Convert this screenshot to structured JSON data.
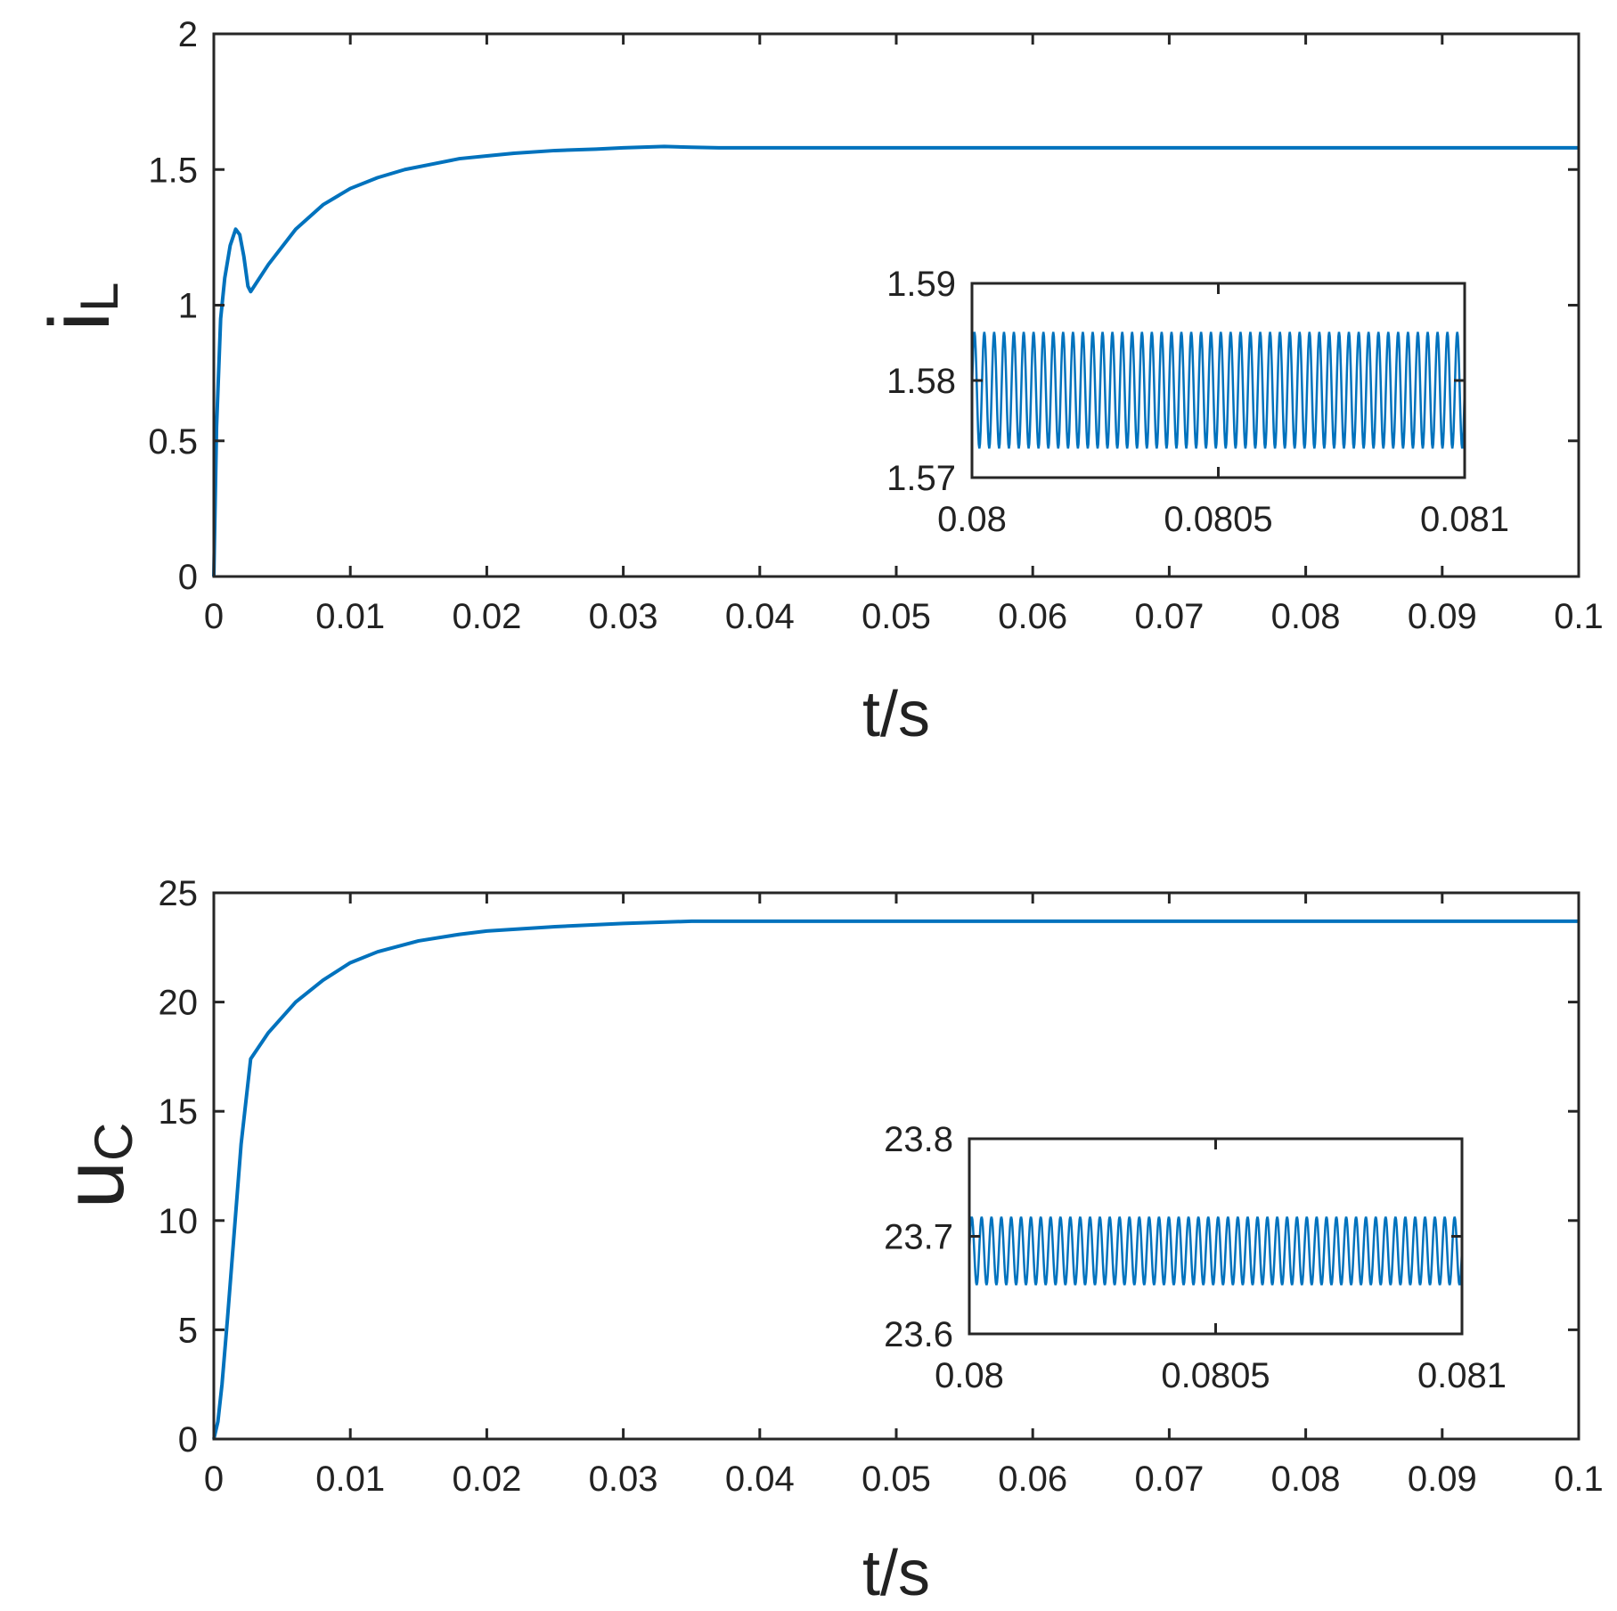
{
  "chart_data": [
    {
      "type": "line",
      "xlabel": "t/s",
      "ylabel": {
        "main": "i",
        "sub": "L"
      },
      "xlim": [
        0,
        0.1
      ],
      "ylim": [
        0,
        2
      ],
      "xticks": [
        0,
        0.01,
        0.02,
        0.03,
        0.04,
        0.05,
        0.06,
        0.07,
        0.08,
        0.09,
        0.1
      ],
      "xtick_labels": [
        "0",
        "0.01",
        "0.02",
        "0.03",
        "0.04",
        "0.05",
        "0.06",
        "0.07",
        "0.08",
        "0.09",
        "0.1"
      ],
      "yticks": [
        0,
        0.5,
        1,
        1.5,
        2
      ],
      "ytick_labels": [
        "0",
        "0.5",
        "1",
        "1.5",
        "2"
      ],
      "grid": false,
      "color": "#0072BD",
      "series": [
        {
          "x": [
            0,
            0.0002,
            0.0005,
            0.0008,
            0.0012,
            0.0016,
            0.0019,
            0.0022,
            0.0025,
            0.0027,
            0.004,
            0.006,
            0.008,
            0.01,
            0.012,
            0.014,
            0.016,
            0.018,
            0.02,
            0.022,
            0.025,
            0.028,
            0.03,
            0.033,
            0.035,
            0.037,
            0.04,
            0.05,
            0.06,
            0.07,
            0.08,
            0.09,
            0.1
          ],
          "y": [
            0,
            0.55,
            0.95,
            1.1,
            1.22,
            1.28,
            1.26,
            1.18,
            1.07,
            1.05,
            1.15,
            1.28,
            1.37,
            1.43,
            1.47,
            1.5,
            1.52,
            1.54,
            1.55,
            1.56,
            1.57,
            1.575,
            1.58,
            1.585,
            1.582,
            1.58,
            1.58,
            1.58,
            1.58,
            1.58,
            1.58,
            1.58,
            1.58
          ]
        }
      ],
      "inset": {
        "type": "line",
        "xlim": [
          0.08,
          0.081
        ],
        "ylim": [
          1.57,
          1.59
        ],
        "xticks": [
          0.08,
          0.0805,
          0.081
        ],
        "xtick_labels": [
          "0.08",
          "0.0805",
          "0.081"
        ],
        "yticks": [
          1.57,
          1.58,
          1.59
        ],
        "ytick_labels": [
          "1.57",
          "1.58",
          "1.59"
        ],
        "series_type": "oscillation",
        "center": 1.579,
        "amplitude": 0.006,
        "cycles": 50
      }
    },
    {
      "type": "line",
      "xlabel": "t/s",
      "ylabel": {
        "main": "u",
        "sub": "C"
      },
      "xlim": [
        0,
        0.1
      ],
      "ylim": [
        0,
        25
      ],
      "xticks": [
        0,
        0.01,
        0.02,
        0.03,
        0.04,
        0.05,
        0.06,
        0.07,
        0.08,
        0.09,
        0.1
      ],
      "xtick_labels": [
        "0",
        "0.01",
        "0.02",
        "0.03",
        "0.04",
        "0.05",
        "0.06",
        "0.07",
        "0.08",
        "0.09",
        "0.1"
      ],
      "yticks": [
        0,
        5,
        10,
        15,
        20,
        25
      ],
      "ytick_labels": [
        "0",
        "5",
        "10",
        "15",
        "20",
        "25"
      ],
      "grid": false,
      "color": "#0072BD",
      "series": [
        {
          "x": [
            0,
            0.0003,
            0.0006,
            0.001,
            0.0015,
            0.002,
            0.0027,
            0.004,
            0.006,
            0.008,
            0.01,
            0.012,
            0.015,
            0.018,
            0.02,
            0.025,
            0.03,
            0.035,
            0.04,
            0.05,
            0.06,
            0.07,
            0.08,
            0.09,
            0.1
          ],
          "y": [
            0,
            0.8,
            2.5,
            5.5,
            9.5,
            13.5,
            17.4,
            18.6,
            20.0,
            21.0,
            21.8,
            22.3,
            22.8,
            23.1,
            23.25,
            23.45,
            23.6,
            23.7,
            23.7,
            23.7,
            23.7,
            23.7,
            23.7,
            23.7,
            23.7
          ]
        }
      ],
      "inset": {
        "type": "line",
        "xlim": [
          0.08,
          0.081
        ],
        "ylim": [
          23.6,
          23.8
        ],
        "xticks": [
          0.08,
          0.0805,
          0.081
        ],
        "xtick_labels": [
          "0.08",
          "0.0805",
          "0.081"
        ],
        "yticks": [
          23.6,
          23.7,
          23.8
        ],
        "ytick_labels": [
          "23.6",
          "23.7",
          "23.8"
        ],
        "series_type": "oscillation",
        "center": 23.685,
        "amplitude": 0.035,
        "cycles": 50
      }
    }
  ]
}
